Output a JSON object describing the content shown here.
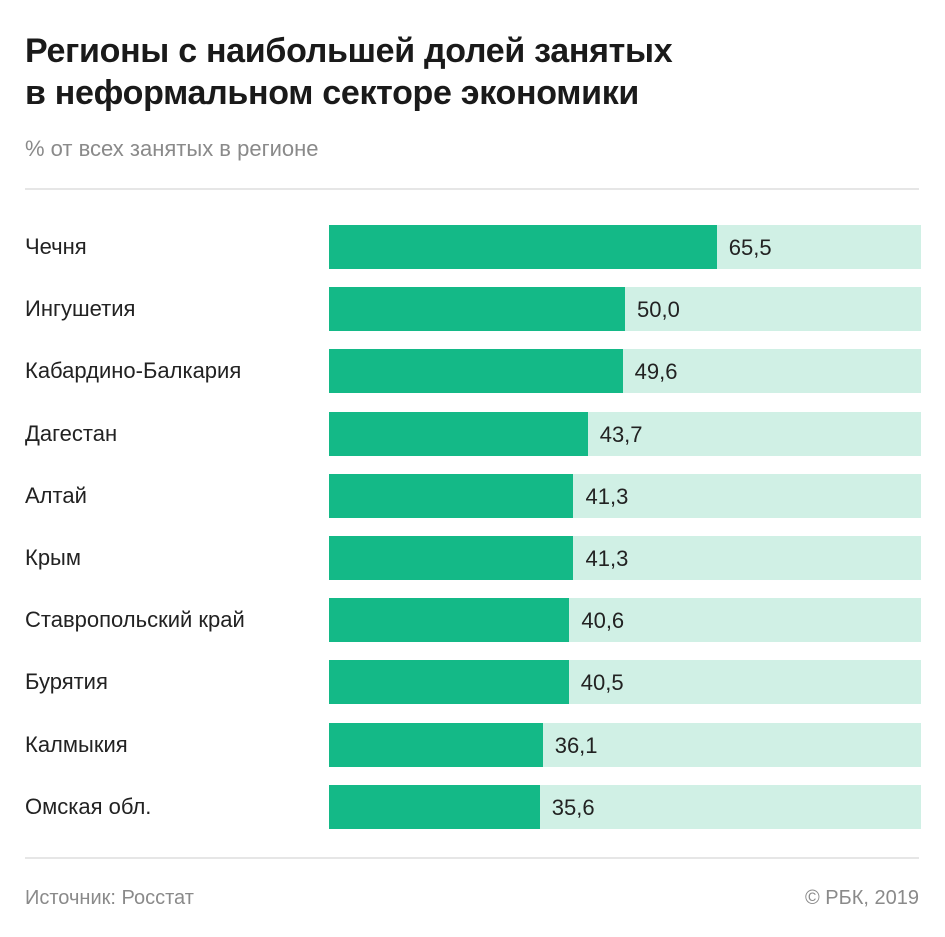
{
  "chart_data": {
    "type": "bar",
    "orientation": "horizontal",
    "title": "Регионы с наибольшей долей занятых в неформальном секторе экономики",
    "title_lines": [
      "Регионы с наибольшей долей занятых",
      "в неформальном секторе экономики"
    ],
    "subtitle": "% от всех занятых в регионе",
    "categories": [
      "Чечня",
      "Ингушетия",
      "Кабардино-Балкария",
      "Дагестан",
      "Алтай",
      "Крым",
      "Ставропольский край",
      "Бурятия",
      "Калмыкия",
      "Омская обл."
    ],
    "values": [
      65.5,
      50.0,
      49.6,
      43.7,
      41.3,
      41.3,
      40.6,
      40.5,
      36.1,
      35.6
    ],
    "value_labels": [
      "65,5",
      "50,0",
      "49,6",
      "43,7",
      "41,3",
      "41,3",
      "40,6",
      "40,5",
      "36,1",
      "35,6"
    ],
    "xlim": [
      0,
      100
    ],
    "grid": false,
    "legend": "none",
    "colors": {
      "bar": "#14b987",
      "track": "#d0f0e5"
    }
  },
  "footer": {
    "source": "Источник: Росстат",
    "copyright": "© РБК, 2019"
  }
}
